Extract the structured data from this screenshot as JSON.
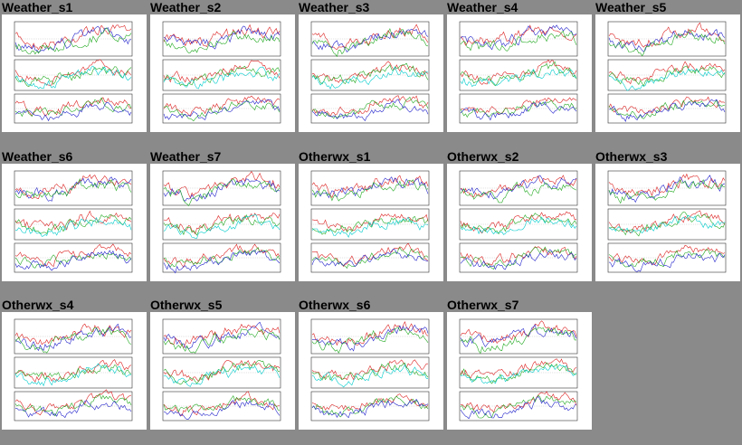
{
  "gallery": {
    "items": [
      {
        "title": "Weather_s1"
      },
      {
        "title": "Weather_s2"
      },
      {
        "title": "Weather_s3"
      },
      {
        "title": "Weather_s4"
      },
      {
        "title": "Weather_s5"
      },
      {
        "title": "Weather_s6"
      },
      {
        "title": "Weather_s7"
      },
      {
        "title": "Otherwx_s1"
      },
      {
        "title": "Otherwx_s2"
      },
      {
        "title": "Otherwx_s3"
      },
      {
        "title": "Otherwx_s4"
      },
      {
        "title": "Otherwx_s5"
      },
      {
        "title": "Otherwx_s6"
      },
      {
        "title": "Otherwx_s7"
      }
    ]
  }
}
